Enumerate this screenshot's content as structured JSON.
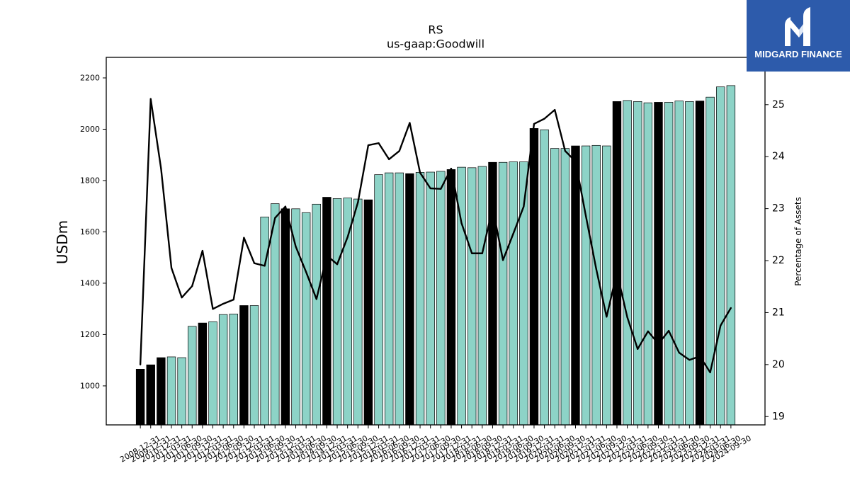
{
  "logo": {
    "text": "MIDGARD FINANCE",
    "background": "#2d5bab",
    "icon": "midgard-m-icon"
  },
  "chart_data": {
    "type": "bar",
    "title": "RS",
    "subtitle": "us-gaap:Goodwill",
    "xlabel": "",
    "ylabel": "USDm",
    "ylim": [
      848,
      2280
    ],
    "yticks": [
      1000,
      1200,
      1400,
      1600,
      1800,
      2000,
      2200
    ],
    "grid": false,
    "legend": false,
    "categories": [
      "2008-12-31",
      "2009-12-31",
      "2010-12-31",
      "2011-03-31",
      "2011-06-30",
      "2011-09-30",
      "2011-12-31",
      "2012-03-31",
      "2012-06-30",
      "2012-09-30",
      "2012-12-31",
      "2013-03-31",
      "2013-06-30",
      "2013-09-30",
      "2013-12-31",
      "2014-03-31",
      "2014-06-30",
      "2014-09-30",
      "2014-12-31",
      "2015-03-31",
      "2015-06-30",
      "2015-09-30",
      "2015-12-31",
      "2016-03-31",
      "2016-06-30",
      "2016-09-30",
      "2016-12-31",
      "2017-03-31",
      "2017-06-30",
      "2017-09-30",
      "2017-12-31",
      "2018-03-31",
      "2018-06-30",
      "2018-09-30",
      "2018-12-31",
      "2019-03-31",
      "2019-06-30",
      "2019-09-30",
      "2019-12-31",
      "2020-03-31",
      "2020-06-30",
      "2020-09-30",
      "2020-12-31",
      "2021-03-31",
      "2021-06-30",
      "2021-09-30",
      "2021-12-31",
      "2022-03-31",
      "2022-06-30",
      "2022-09-30",
      "2022-12-31",
      "2023-03-31",
      "2023-06-30",
      "2023-09-30",
      "2023-12-31",
      "2024-03-31",
      "2024-06-30",
      "2024-09-30"
    ],
    "series": [
      {
        "color": "#8dd3c7",
        "edge_color": "#000000",
        "highlight_color": "#000000",
        "highlighted": [
          true,
          true,
          true,
          false,
          false,
          false,
          true,
          false,
          false,
          false,
          true,
          false,
          false,
          false,
          true,
          false,
          false,
          false,
          true,
          false,
          false,
          false,
          true,
          false,
          false,
          false,
          true,
          false,
          false,
          false,
          true,
          false,
          false,
          false,
          true,
          false,
          false,
          false,
          true,
          false,
          false,
          false,
          true,
          false,
          false,
          false,
          true,
          false,
          false,
          false,
          true,
          false,
          false,
          false,
          true,
          false,
          false,
          false
        ],
        "values": [
          1065,
          1082,
          1110,
          1113,
          1110,
          1232,
          1245,
          1250,
          1278,
          1280,
          1313,
          1313,
          1658,
          1710,
          1690,
          1690,
          1675,
          1708,
          1735,
          1730,
          1732,
          1728,
          1725,
          1823,
          1830,
          1830,
          1827,
          1832,
          1833,
          1836,
          1843,
          1852,
          1850,
          1855,
          1871,
          1871,
          1873,
          1873,
          2003,
          1998,
          1925,
          1925,
          1935,
          1935,
          1937,
          1935,
          2108,
          2112,
          2108,
          2103,
          2105,
          2105,
          2110,
          2108,
          2110,
          2125,
          2165,
          2170
        ]
      }
    ],
    "secondary": {
      "type": "line",
      "ylabel": "Percentage of Assets",
      "ylim": [
        18.84,
        25.91
      ],
      "yticks": [
        19,
        20,
        21,
        22,
        23,
        24,
        25
      ],
      "color": "#000000",
      "values": [
        20.0,
        25.11,
        23.77,
        21.86,
        21.29,
        21.51,
        22.19,
        21.07,
        21.17,
        21.25,
        22.44,
        21.95,
        21.9,
        22.82,
        23.04,
        22.27,
        21.78,
        21.26,
        22.1,
        21.93,
        22.45,
        23.12,
        24.22,
        24.26,
        23.95,
        24.11,
        24.65,
        23.69,
        23.39,
        23.38,
        23.77,
        22.72,
        22.14,
        22.14,
        23.02,
        22.01,
        22.52,
        23.04,
        24.63,
        24.73,
        24.9,
        24.11,
        23.91,
        22.86,
        21.84,
        20.92,
        21.77,
        20.91,
        20.3,
        20.64,
        20.4,
        20.65,
        20.23,
        20.09,
        20.16,
        19.85,
        20.75,
        21.09
      ]
    }
  }
}
